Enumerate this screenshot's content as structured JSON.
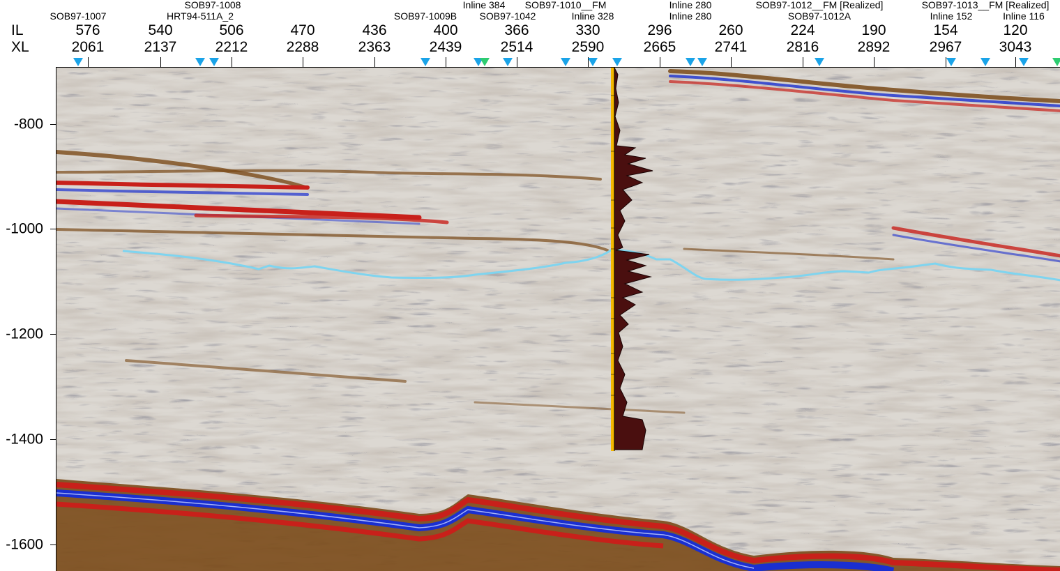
{
  "axes": {
    "il_label": "IL",
    "xl_label": "XL",
    "ticks": [
      {
        "il": "576",
        "xl": "2061"
      },
      {
        "il": "540",
        "xl": "2137"
      },
      {
        "il": "506",
        "xl": "2212"
      },
      {
        "il": "470",
        "xl": "2288"
      },
      {
        "il": "436",
        "xl": "2363"
      },
      {
        "il": "400",
        "xl": "2439"
      },
      {
        "il": "366",
        "xl": "2514"
      },
      {
        "il": "330",
        "xl": "2590"
      },
      {
        "il": "296",
        "xl": "2665"
      },
      {
        "il": "260",
        "xl": "2741"
      },
      {
        "il": "224",
        "xl": "2816"
      },
      {
        "il": "190",
        "xl": "2892"
      },
      {
        "il": "154",
        "xl": "2967"
      },
      {
        "il": "120",
        "xl": "3043"
      }
    ],
    "depth_labels": [
      "-800",
      "-1000",
      "-1200",
      "-1400",
      "-1600"
    ]
  },
  "well_labels": [
    "SOB97-1007",
    "SOB97-1008",
    "HRT94-511A_2",
    "SOB97-1009B",
    "Inline 384",
    "SOB97-1042",
    "SOB97-1010__FM",
    "Inline 328",
    "Inline 280",
    "Inline 280",
    "SOB97-1012__FM [Realized]",
    "SOB97-1012A",
    "SOB97-1013__FM [Realized]",
    "Inline 152",
    "Inline 116"
  ],
  "colors": {
    "marker": "#1aa3e8",
    "marker_alt": "#2ecc71",
    "horizon": "#7fd4ef",
    "seismic_red": "#c8201a",
    "seismic_blue": "#1a2fd0",
    "seismic_brown": "#7a4a18",
    "log_fill": "#4a0f0f",
    "log_lith": "#f5b800"
  },
  "icons": {
    "well_marker": "inverted-triangle-icon"
  }
}
